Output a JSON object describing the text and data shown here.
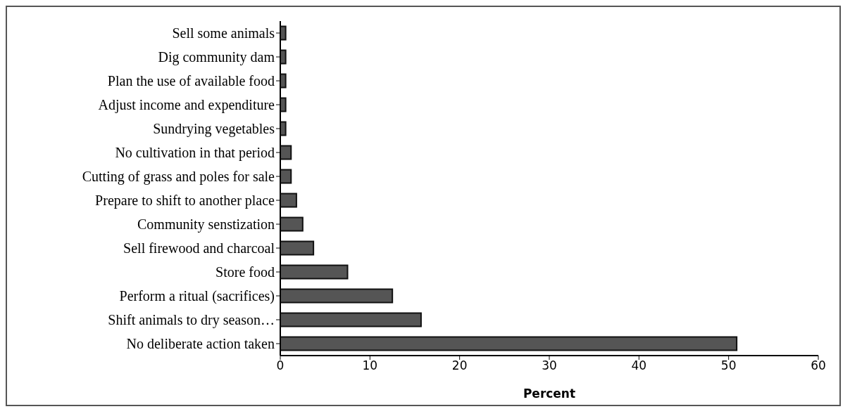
{
  "chart_data": {
    "type": "bar",
    "orientation": "horizontal",
    "xlabel": "Percent",
    "categories": [
      "Sell some animals",
      "Dig community dam",
      "Plan the use of available food",
      "Adjust income and expenditure",
      "Sundrying vegetables",
      "No cultivation in that period",
      "Cutting of grass and poles for sale",
      "Prepare to shift to another place",
      "Community senstization",
      "Sell firewood and charcoal",
      "Store food",
      "Perform a ritual (sacrifices)",
      "Shift animals to dry season…",
      "No deliberate action taken"
    ],
    "values": [
      0.6,
      0.6,
      0.6,
      0.6,
      0.6,
      1.2,
      1.2,
      1.8,
      2.5,
      3.7,
      7.5,
      12.5,
      15.7,
      50.9
    ],
    "color": "#555555",
    "xlim": [
      0,
      60
    ],
    "xticks": [
      0,
      10,
      20,
      30,
      40,
      50,
      60
    ],
    "grid": false,
    "legend": false
  }
}
